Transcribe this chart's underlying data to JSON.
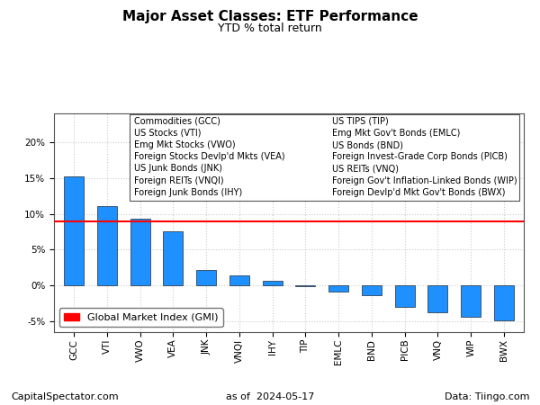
{
  "title": "Major Asset Classes: ETF Performance",
  "subtitle": "YTD % total return",
  "categories": [
    "GCC",
    "VTI",
    "VWO",
    "VEA",
    "JNK",
    "VNQI",
    "IHY",
    "TIP",
    "EMLC",
    "BND",
    "PICB",
    "VNQ",
    "WIP",
    "BWX"
  ],
  "values": [
    15.2,
    11.1,
    9.3,
    7.5,
    2.1,
    1.4,
    0.6,
    -0.15,
    -0.9,
    -1.4,
    -3.0,
    -3.8,
    -4.4,
    -4.9
  ],
  "bar_color": "#1E90FF",
  "bar_edge_color": "#000000",
  "gmi_line": 9.0,
  "gmi_color": "#FF0000",
  "ylim": [
    -6.5,
    24
  ],
  "yticks": [
    -5,
    0,
    5,
    10,
    15,
    20
  ],
  "legend_left": [
    "Commodities (GCC)",
    "US Stocks (VTI)",
    "Emg Mkt Stocks (VWO)",
    "Foreign Stocks Devlp'd Mkts (VEA)",
    "US Junk Bonds (JNK)",
    "Foreign REITs (VNQI)",
    "Foreign Junk Bonds (IHY)"
  ],
  "legend_right": [
    "US TIPS (TIP)",
    "Emg Mkt Gov't Bonds (EMLC)",
    "US Bonds (BND)",
    "Foreign Invest-Grade Corp Bonds (PICB)",
    "US REITs (VNQ)",
    "Foreign Gov't Inflation-Linked Bonds (WIP)",
    "Foreign Devlp'd Mkt Gov't Bonds (BWX)"
  ],
  "footer_left": "CapitalSpectator.com",
  "footer_center": "as of  2024-05-17",
  "footer_right": "Data: Tiingo.com",
  "background_color": "#FFFFFF",
  "grid_color": "#CCCCCC",
  "title_fontsize": 11,
  "subtitle_fontsize": 9,
  "tick_fontsize": 7.5,
  "legend_fontsize": 7,
  "footer_fontsize": 8,
  "gmi_legend_fontsize": 8
}
